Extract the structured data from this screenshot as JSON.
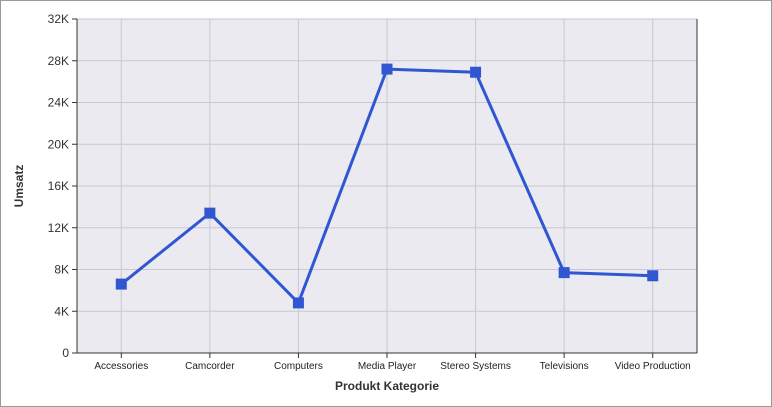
{
  "chart_data": {
    "type": "line",
    "title": "",
    "xlabel": "Produkt Kategorie",
    "ylabel": "Umsatz",
    "categories": [
      "Accessories",
      "Camcorder",
      "Computers",
      "Media Player",
      "Stereo Systems",
      "Televisions",
      "Video Production"
    ],
    "series": [
      {
        "values": [
          6600,
          13400,
          4800,
          27200,
          26900,
          7700,
          7400
        ]
      }
    ],
    "ylim": [
      0,
      32000
    ],
    "yticks": [
      0,
      4000,
      8000,
      12000,
      16000,
      20000,
      24000,
      28000,
      32000
    ],
    "ytick_labels": [
      "0",
      "4K",
      "8K",
      "12K",
      "16K",
      "20K",
      "24K",
      "28K",
      "32K"
    ],
    "grid": true,
    "legend": "none",
    "colors": {
      "series": "#3057d1",
      "plot_background": "#ebeaf0",
      "grid": "#c8c8d0",
      "axis": "#333333"
    }
  }
}
